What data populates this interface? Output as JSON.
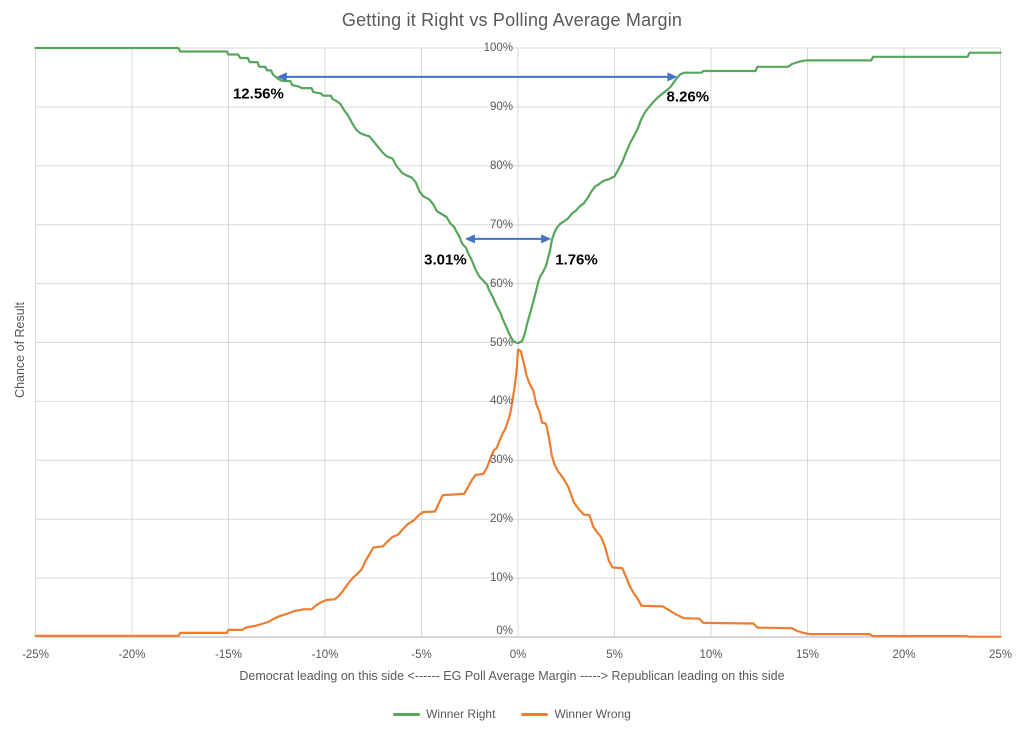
{
  "colors": {
    "grid": "#D9D9D9",
    "axis": "#BFBFBF",
    "text": "#595959",
    "annotation_text": "#000000",
    "green_series": "#57A65B",
    "orange_series": "#ED7D31",
    "arrow_blue": "#4472C4"
  },
  "chart_data": {
    "type": "line",
    "title": "Getting it Right vs Polling Average Margin",
    "xlabel": "Democrat leading on this side <------ EG Poll Average Margin -----> Republican leading on this side",
    "ylabel": "Chance of Result",
    "xlim": [
      -25,
      25
    ],
    "ylim": [
      0,
      100
    ],
    "grid": true,
    "legend_position": "bottom",
    "x_tick_values": [
      -25,
      -20,
      -15,
      -10,
      -5,
      0,
      5,
      10,
      15,
      20,
      25
    ],
    "x_tick_labels": [
      "-25%",
      "-20%",
      "-15%",
      "-10%",
      "-5%",
      "0%",
      "5%",
      "10%",
      "15%",
      "20%",
      "25%"
    ],
    "y_tick_values": [
      100,
      90,
      80,
      70,
      60,
      50,
      40,
      30,
      20,
      10,
      0
    ],
    "y_tick_labels": [
      "100%",
      "90%",
      "80%",
      "70%",
      "60%",
      "50%",
      "40%",
      "30%",
      "20%",
      "10%",
      "0%"
    ],
    "series": [
      {
        "name": "Winner Right",
        "color": "#57A65B",
        "points": [
          [
            -25,
            100
          ],
          [
            -17.6,
            100
          ],
          [
            -17.5,
            99.4
          ],
          [
            -15.1,
            99.4
          ],
          [
            -15,
            98.9
          ],
          [
            -14.5,
            98.9
          ],
          [
            -14.4,
            98.3
          ],
          [
            -14,
            98.3
          ],
          [
            -13.9,
            97.6
          ],
          [
            -13.5,
            97.6
          ],
          [
            -13.4,
            96.8
          ],
          [
            -13.1,
            96.8
          ],
          [
            -13,
            96.2
          ],
          [
            -12.8,
            96.2
          ],
          [
            -12.7,
            95.5
          ],
          [
            -12.56,
            95.1
          ],
          [
            -12.4,
            94.7
          ],
          [
            -12.2,
            94.4
          ],
          [
            -11.8,
            94.4
          ],
          [
            -11.7,
            93.7
          ],
          [
            -11.4,
            93.5
          ],
          [
            -11.2,
            93.2
          ],
          [
            -10.7,
            93.2
          ],
          [
            -10.6,
            92.5
          ],
          [
            -10.2,
            92.3
          ],
          [
            -10.1,
            91.9
          ],
          [
            -9.7,
            91.9
          ],
          [
            -9.6,
            91.3
          ],
          [
            -9.4,
            91
          ],
          [
            -9.2,
            90.5
          ],
          [
            -9,
            89.4
          ],
          [
            -8.8,
            88.5
          ],
          [
            -8.6,
            87.3
          ],
          [
            -8.4,
            86.2
          ],
          [
            -8.2,
            85.6
          ],
          [
            -8,
            85.3
          ],
          [
            -7.7,
            85
          ],
          [
            -7.5,
            84.2
          ],
          [
            -7.2,
            83
          ],
          [
            -7,
            82.2
          ],
          [
            -6.8,
            81.6
          ],
          [
            -6.5,
            81.2
          ],
          [
            -6.3,
            80
          ],
          [
            -6,
            78.8
          ],
          [
            -5.8,
            78.4
          ],
          [
            -5.5,
            78
          ],
          [
            -5.3,
            77.2
          ],
          [
            -5.1,
            75.6
          ],
          [
            -4.9,
            74.8
          ],
          [
            -4.6,
            74.3
          ],
          [
            -4.4,
            73.5
          ],
          [
            -4.2,
            72.3
          ],
          [
            -4,
            71.9
          ],
          [
            -3.7,
            71.3
          ],
          [
            -3.5,
            70.2
          ],
          [
            -3.3,
            69.6
          ],
          [
            -3.2,
            68.9
          ],
          [
            -3.01,
            67.8
          ],
          [
            -2.9,
            66.8
          ],
          [
            -2.7,
            66.1
          ],
          [
            -2.6,
            65.3
          ],
          [
            -2.4,
            64
          ],
          [
            -2.2,
            62.4
          ],
          [
            -2,
            61.2
          ],
          [
            -1.8,
            60.5
          ],
          [
            -1.6,
            59.8
          ],
          [
            -1.5,
            58.9
          ],
          [
            -1.3,
            57.7
          ],
          [
            -1.1,
            56.2
          ],
          [
            -0.9,
            55
          ],
          [
            -0.8,
            54
          ],
          [
            -0.6,
            52.6
          ],
          [
            -0.5,
            51.8
          ],
          [
            -0.35,
            50.8
          ],
          [
            -0.2,
            50.1
          ],
          [
            0,
            49.9
          ],
          [
            0.2,
            50.2
          ],
          [
            0.35,
            51.5
          ],
          [
            0.5,
            53.5
          ],
          [
            0.65,
            55.2
          ],
          [
            0.8,
            57
          ],
          [
            0.95,
            58.9
          ],
          [
            1.05,
            60.3
          ],
          [
            1.15,
            61.2
          ],
          [
            1.3,
            62
          ],
          [
            1.45,
            63
          ],
          [
            1.55,
            64.3
          ],
          [
            1.65,
            65.4
          ],
          [
            1.76,
            67.5
          ],
          [
            1.9,
            68.8
          ],
          [
            2,
            69.4
          ],
          [
            2.2,
            70.2
          ],
          [
            2.4,
            70.6
          ],
          [
            2.6,
            71.1
          ],
          [
            2.8,
            71.9
          ],
          [
            3,
            72.4
          ],
          [
            3.2,
            73.1
          ],
          [
            3.4,
            73.6
          ],
          [
            3.6,
            74.5
          ],
          [
            3.8,
            75.6
          ],
          [
            4,
            76.5
          ],
          [
            4.2,
            76.9
          ],
          [
            4.4,
            77.4
          ],
          [
            4.7,
            77.7
          ],
          [
            5,
            78.2
          ],
          [
            5.2,
            79.4
          ],
          [
            5.4,
            80.6
          ],
          [
            5.6,
            82.3
          ],
          [
            5.8,
            83.8
          ],
          [
            6,
            85
          ],
          [
            6.2,
            86.3
          ],
          [
            6.4,
            88
          ],
          [
            6.6,
            89.2
          ],
          [
            6.8,
            90
          ],
          [
            7,
            90.8
          ],
          [
            7.2,
            91.5
          ],
          [
            7.5,
            92.3
          ],
          [
            7.7,
            92.8
          ],
          [
            7.9,
            93.4
          ],
          [
            8.1,
            94.3
          ],
          [
            8.26,
            95
          ],
          [
            8.4,
            95.5
          ],
          [
            8.6,
            95.8
          ],
          [
            9.5,
            95.8
          ],
          [
            9.6,
            96.1
          ],
          [
            12.3,
            96.1
          ],
          [
            12.4,
            96.8
          ],
          [
            14,
            96.8
          ],
          [
            14.2,
            97.3
          ],
          [
            14.6,
            97.7
          ],
          [
            14.9,
            97.9
          ],
          [
            18.3,
            97.9
          ],
          [
            18.4,
            98.5
          ],
          [
            23.3,
            98.5
          ],
          [
            23.4,
            99.2
          ],
          [
            25,
            99.2
          ]
        ]
      },
      {
        "name": "Winner Wrong",
        "color": "#ED7D31",
        "points": [
          [
            -25,
            0.2
          ],
          [
            -17.6,
            0.2
          ],
          [
            -17.5,
            0.7
          ],
          [
            -15.1,
            0.7
          ],
          [
            -15,
            1.2
          ],
          [
            -14.3,
            1.2
          ],
          [
            -14.1,
            1.6
          ],
          [
            -13.6,
            1.9
          ],
          [
            -13.2,
            2.3
          ],
          [
            -12.9,
            2.6
          ],
          [
            -12.6,
            3.2
          ],
          [
            -12.3,
            3.6
          ],
          [
            -12,
            3.9
          ],
          [
            -11.6,
            4.4
          ],
          [
            -11.1,
            4.7
          ],
          [
            -10.7,
            4.7
          ],
          [
            -10.5,
            5.3
          ],
          [
            -10.2,
            5.9
          ],
          [
            -9.9,
            6.3
          ],
          [
            -9.5,
            6.4
          ],
          [
            -9.3,
            6.9
          ],
          [
            -9.1,
            7.7
          ],
          [
            -8.9,
            8.6
          ],
          [
            -8.7,
            9.5
          ],
          [
            -8.5,
            10.2
          ],
          [
            -8.3,
            10.8
          ],
          [
            -8.1,
            11.5
          ],
          [
            -7.9,
            12.9
          ],
          [
            -7.7,
            14
          ],
          [
            -7.5,
            15.2
          ],
          [
            -7,
            15.4
          ],
          [
            -6.8,
            16.1
          ],
          [
            -6.5,
            17
          ],
          [
            -6.2,
            17.4
          ],
          [
            -6,
            18.2
          ],
          [
            -5.7,
            19.2
          ],
          [
            -5.4,
            19.8
          ],
          [
            -5.1,
            20.8
          ],
          [
            -4.9,
            21.2
          ],
          [
            -4.3,
            21.3
          ],
          [
            -4.1,
            22.7
          ],
          [
            -3.9,
            24.1
          ],
          [
            -2.8,
            24.3
          ],
          [
            -2.6,
            25.4
          ],
          [
            -2.4,
            26.6
          ],
          [
            -2.2,
            27.5
          ],
          [
            -1.8,
            27.7
          ],
          [
            -1.6,
            28.8
          ],
          [
            -1.4,
            30.6
          ],
          [
            -1.25,
            31.7
          ],
          [
            -1.1,
            32.1
          ],
          [
            -0.95,
            33.4
          ],
          [
            -0.8,
            34.5
          ],
          [
            -0.65,
            35.4
          ],
          [
            -0.55,
            36.4
          ],
          [
            -0.45,
            37.3
          ],
          [
            -0.35,
            38.8
          ],
          [
            -0.25,
            40.9
          ],
          [
            -0.15,
            43
          ],
          [
            -0.05,
            46
          ],
          [
            0,
            48.8
          ],
          [
            0.15,
            48.5
          ],
          [
            0.3,
            46.5
          ],
          [
            0.45,
            44.3
          ],
          [
            0.6,
            43
          ],
          [
            0.8,
            41.8
          ],
          [
            0.95,
            39.5
          ],
          [
            1.1,
            38.4
          ],
          [
            1.25,
            36.4
          ],
          [
            1.45,
            36.2
          ],
          [
            1.6,
            33.9
          ],
          [
            1.75,
            30.8
          ],
          [
            1.9,
            29.2
          ],
          [
            2.1,
            28
          ],
          [
            2.3,
            27.2
          ],
          [
            2.6,
            25.5
          ],
          [
            2.9,
            22.8
          ],
          [
            3.2,
            21.5
          ],
          [
            3.4,
            20.8
          ],
          [
            3.7,
            20.7
          ],
          [
            3.9,
            18.7
          ],
          [
            4.1,
            17.8
          ],
          [
            4.3,
            17
          ],
          [
            4.5,
            15.4
          ],
          [
            4.7,
            13
          ],
          [
            4.9,
            11.8
          ],
          [
            5.4,
            11.7
          ],
          [
            5.6,
            10.2
          ],
          [
            5.8,
            8.6
          ],
          [
            6,
            7.4
          ],
          [
            6.2,
            6.5
          ],
          [
            6.4,
            5.3
          ],
          [
            7.5,
            5.2
          ],
          [
            7.8,
            4.6
          ],
          [
            8.2,
            3.8
          ],
          [
            8.6,
            3.2
          ],
          [
            9.4,
            3.1
          ],
          [
            9.6,
            2.4
          ],
          [
            12.2,
            2.3
          ],
          [
            12.4,
            1.6
          ],
          [
            14.2,
            1.5
          ],
          [
            14.4,
            1.1
          ],
          [
            14.8,
            0.7
          ],
          [
            15.1,
            0.5
          ],
          [
            18.2,
            0.5
          ],
          [
            18.4,
            0.15
          ],
          [
            23.2,
            0.15
          ],
          [
            23.4,
            0.05
          ],
          [
            25,
            0.05
          ]
        ]
      }
    ],
    "annotations": {
      "arrow_color": "#4472C4",
      "arrows": [
        {
          "x1": -12.5,
          "x2": 8.26,
          "y": 95.1
        },
        {
          "x1": -2.75,
          "x2": 1.72,
          "y": 67.6
        }
      ],
      "labels": [
        {
          "text": "12.56%",
          "x": -13.45,
          "y": 92.2
        },
        {
          "text": "8.26%",
          "x": 8.8,
          "y": 91.6
        },
        {
          "text": "3.01%",
          "x": -3.76,
          "y": 64
        },
        {
          "text": "1.76%",
          "x": 3.03,
          "y": 64
        }
      ]
    }
  },
  "legend": {
    "items": [
      "Winner Right",
      "Winner Wrong"
    ]
  }
}
